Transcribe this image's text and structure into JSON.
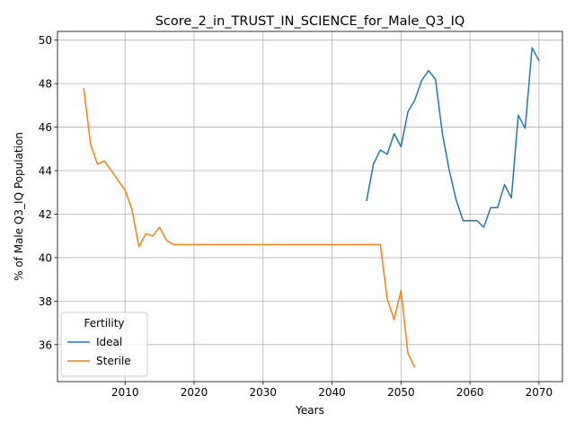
{
  "chart_data": {
    "type": "line",
    "title": "Score_2_in_TRUST_IN_SCIENCE_for_Male_Q3_IQ",
    "xlabel": "Years",
    "ylabel": "% of Male Q3_IQ Population",
    "xlim": [
      2000.2,
      2073.4
    ],
    "ylim": [
      34.3,
      50.4
    ],
    "xticks": [
      2010,
      2020,
      2030,
      2040,
      2050,
      2060,
      2070
    ],
    "yticks": [
      36,
      38,
      40,
      42,
      44,
      46,
      48,
      50
    ],
    "grid": true,
    "legend": {
      "title": "Fertility",
      "placement": "lower-left"
    },
    "series": [
      {
        "name": "Ideal",
        "color": "#1f77b4",
        "x": [
          2045,
          2046,
          2047,
          2048,
          2049,
          2050,
          2051,
          2052,
          2053,
          2054,
          2055,
          2056,
          2057,
          2058,
          2059,
          2060,
          2061,
          2062,
          2063,
          2064,
          2065,
          2066,
          2067,
          2068,
          2069,
          2070
        ],
        "y": [
          42.6,
          44.3,
          44.95,
          44.75,
          45.7,
          45.1,
          46.7,
          47.25,
          48.15,
          48.6,
          48.2,
          45.7,
          44.0,
          42.65,
          41.7,
          41.7,
          41.7,
          41.4,
          42.3,
          42.3,
          43.35,
          42.75,
          46.55,
          45.95,
          49.65,
          49.05
        ]
      },
      {
        "name": "Sterile",
        "color": "#ff7f0e",
        "x": [
          2004,
          2005,
          2006,
          2007,
          2008,
          2009,
          2010,
          2011,
          2012,
          2013,
          2014,
          2015,
          2016,
          2017,
          2018,
          2020,
          2030,
          2040,
          2046,
          2047,
          2048,
          2049,
          2050,
          2051,
          2052
        ],
        "y": [
          47.8,
          45.2,
          44.3,
          44.45,
          44.0,
          43.55,
          43.1,
          42.2,
          40.5,
          41.1,
          41.0,
          41.4,
          40.8,
          40.6,
          40.6,
          40.6,
          40.6,
          40.6,
          40.6,
          40.6,
          38.1,
          37.15,
          38.5,
          35.6,
          34.95
        ]
      }
    ]
  }
}
